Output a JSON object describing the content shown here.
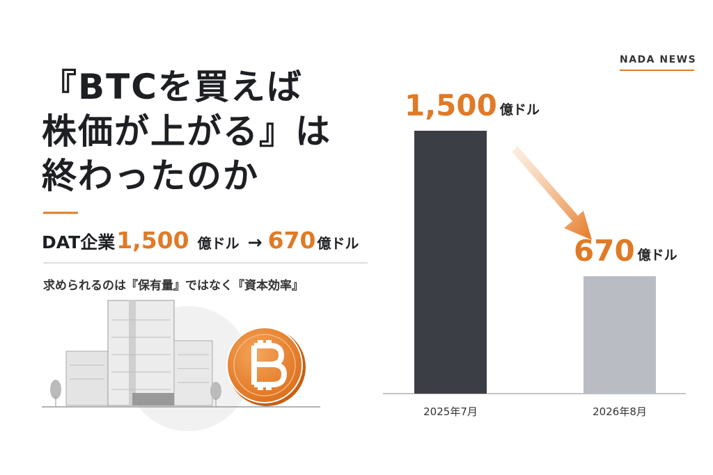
{
  "brand": "NADA NEWS",
  "title_lines": [
    "『BTCを買えば",
    "株価が上がる』は",
    "終わったのか"
  ],
  "headline": {
    "prefix": "DAT企業",
    "from": "1,500",
    "from_unit": "億ドル",
    "arrow": "→",
    "to": "670",
    "to_unit": "億ドル"
  },
  "tagline": "求められるのは『保有量』ではなく『資本効率』",
  "chart_data": {
    "type": "bar",
    "categories": [
      "2025年7月",
      "2026年8月"
    ],
    "values": [
      1500,
      670
    ],
    "value_labels": [
      "1,500",
      "670"
    ],
    "unit_label": "億ドル",
    "colors": [
      "#3b3e44",
      "#b9bdc3"
    ]
  }
}
